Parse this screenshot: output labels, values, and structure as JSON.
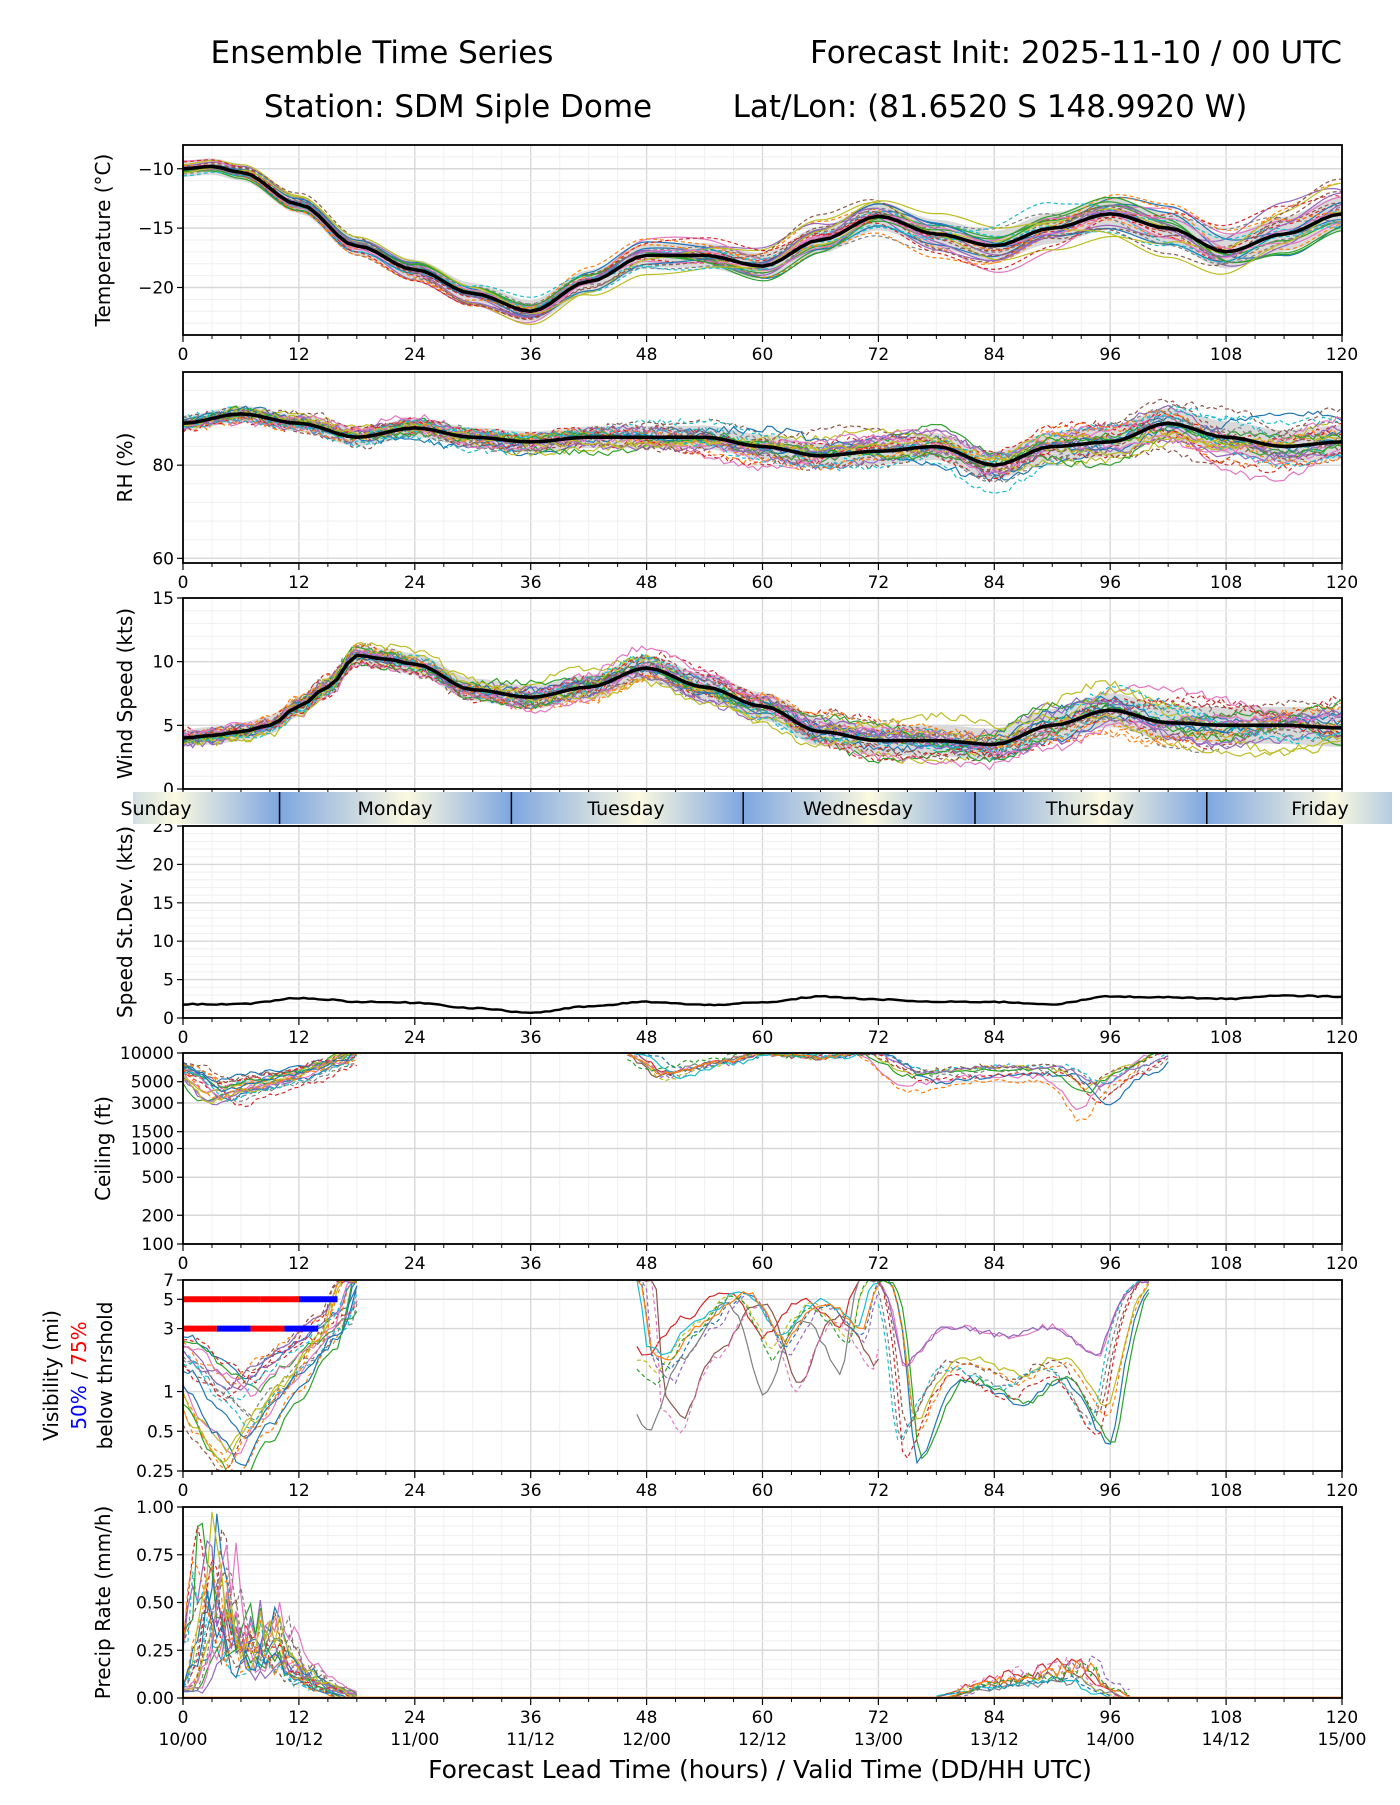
{
  "header": {
    "title_left": "Ensemble Time Series",
    "title_right": "Forecast Init: 2025-11-10 / 00 UTC",
    "station": "Station: SDM  Siple Dome",
    "latlon": "Lat/Lon: (81.6520 S 148.9920 W)"
  },
  "x_axis": {
    "label": "Forecast Lead Time (hours) / Valid Time (DD/HH UTC)",
    "lead_hours": [
      0,
      12,
      24,
      36,
      48,
      60,
      72,
      84,
      96,
      108,
      120
    ],
    "lead_tick_labels": [
      "0",
      "12",
      "24",
      "36",
      "48",
      "60",
      "72",
      "84",
      "96",
      "108",
      "120"
    ],
    "valid_time_labels": [
      "10/00",
      "10/12",
      "11/00",
      "11/12",
      "12/00",
      "12/12",
      "13/00",
      "13/12",
      "14/00",
      "14/12",
      "15/00"
    ]
  },
  "day_strip": {
    "days": [
      "Sunday",
      "Monday",
      "Tuesday",
      "Wednesday",
      "Thursday",
      "Friday"
    ],
    "day_boundaries_hours": [
      10,
      34,
      58,
      82,
      106
    ]
  },
  "colors": {
    "ensemble_palette": [
      "#1f77b4",
      "#ff7f0e",
      "#2ca02c",
      "#d62728",
      "#9467bd",
      "#8c564b",
      "#e377c2",
      "#7f7f7f",
      "#bcbd22",
      "#17becf"
    ],
    "mean_line": "#000000",
    "spread_band": "#d9d9d9",
    "grid": "#e6e6e6",
    "vis_50": "#0000ff",
    "vis_75": "#ff0000",
    "day_dark": "#7ea6e0",
    "day_light": "#fbf9e0"
  },
  "chart_data": [
    {
      "type": "line",
      "name": "temperature",
      "ylabel": "Temperature (°C)",
      "ylim": [
        -24,
        -8
      ],
      "yticks": [
        -10,
        -15,
        -20
      ],
      "ytick_labels": [
        "−10",
        "−15",
        "−20"
      ],
      "series": [
        {
          "name": "ensemble mean",
          "x": [
            0,
            3,
            6,
            12,
            18,
            24,
            30,
            36,
            42,
            48,
            54,
            60,
            66,
            72,
            78,
            84,
            90,
            96,
            102,
            108,
            114,
            120
          ],
          "values": [
            -10,
            -9.8,
            -10.3,
            -13,
            -16.5,
            -18.5,
            -20.5,
            -22,
            -19.5,
            -17.3,
            -17.3,
            -18.2,
            -16,
            -14,
            -15.5,
            -16.5,
            -15,
            -13.8,
            -15,
            -17,
            -15.5,
            -13.8
          ]
        }
      ],
      "ensemble_spread_approx": 2.5
    },
    {
      "type": "line",
      "name": "relative_humidity",
      "ylabel": "RH (%)",
      "ylim": [
        59,
        100
      ],
      "yticks": [
        60,
        80
      ],
      "ytick_labels": [
        "60",
        "80"
      ],
      "series": [
        {
          "name": "ensemble mean",
          "x": [
            0,
            6,
            12,
            18,
            24,
            30,
            36,
            42,
            48,
            54,
            60,
            66,
            72,
            78,
            84,
            90,
            96,
            102,
            108,
            114,
            120
          ],
          "values": [
            89,
            91,
            89,
            86,
            88,
            86,
            85,
            86,
            86,
            86,
            84,
            82,
            83,
            84,
            80,
            84,
            85,
            89,
            86,
            84,
            85
          ]
        }
      ],
      "ensemble_spread_approx": 6
    },
    {
      "type": "line",
      "name": "wind_speed",
      "ylabel": "Wind Speed (kts)",
      "ylim": [
        0,
        15
      ],
      "yticks": [
        0,
        5,
        10,
        15
      ],
      "ytick_labels": [
        "0",
        "5",
        "10",
        "15"
      ],
      "series": [
        {
          "name": "ensemble mean",
          "x": [
            0,
            3,
            6,
            9,
            12,
            15,
            18,
            21,
            24,
            30,
            36,
            42,
            48,
            54,
            60,
            66,
            72,
            78,
            84,
            90,
            96,
            102,
            108,
            114,
            120
          ],
          "values": [
            4,
            4.2,
            4.5,
            5,
            6.5,
            8,
            10.5,
            10.2,
            9.8,
            7.8,
            7.2,
            8,
            9.5,
            8,
            6.5,
            4.5,
            3.8,
            3.8,
            3.5,
            5,
            6.2,
            5.2,
            5,
            5,
            4.8
          ]
        }
      ],
      "ensemble_spread_approx": 2.5
    },
    {
      "type": "line",
      "name": "speed_stdev",
      "ylabel": "Speed St.Dev. (kts)",
      "ylim": [
        0,
        25
      ],
      "yticks": [
        0,
        5,
        10,
        15,
        20,
        25
      ],
      "ytick_labels": [
        "0",
        "5",
        "10",
        "15",
        "20",
        "25"
      ],
      "series": [
        {
          "name": "ensemble st.dev.",
          "x": [
            0,
            6,
            12,
            15,
            18,
            24,
            30,
            36,
            42,
            48,
            54,
            60,
            66,
            72,
            78,
            84,
            90,
            96,
            102,
            108,
            114,
            120
          ],
          "values": [
            1.8,
            1.8,
            2.6,
            2.4,
            2.1,
            2,
            1.3,
            0.7,
            1.5,
            2.1,
            1.7,
            2,
            2.8,
            2.4,
            2.1,
            2.1,
            1.8,
            2.8,
            2.7,
            2.5,
            2.9,
            2.8
          ]
        }
      ]
    },
    {
      "type": "line",
      "name": "ceiling",
      "ylabel": "Ceiling (ft)",
      "yscale": "log",
      "ylim": [
        100,
        10000
      ],
      "yticks": [
        100,
        200,
        500,
        1000,
        1500,
        3000,
        5000,
        10000
      ],
      "ytick_labels": [
        "100",
        "200",
        "500",
        "1000",
        "1500",
        "3000",
        "5000",
        "10000"
      ],
      "series": [
        {
          "name": "members with ceiling (early)",
          "x": [
            0,
            4,
            8,
            12,
            16,
            18
          ],
          "values": [
            7000,
            4000,
            5000,
            6000,
            8000,
            10000
          ]
        },
        {
          "name": "members with ceiling (mid)",
          "x": [
            46,
            50,
            56,
            60,
            66,
            70
          ],
          "values": [
            10000,
            6000,
            8000,
            10000,
            9000,
            10000
          ]
        },
        {
          "name": "members with ceiling (late)",
          "x": [
            70,
            76,
            84,
            90,
            94,
            98,
            102
          ],
          "values": [
            10000,
            5000,
            6000,
            6000,
            3000,
            6000,
            10000
          ]
        }
      ]
    },
    {
      "type": "line",
      "name": "visibility",
      "ylabel": "Visibility (mi)",
      "ylabel_50": "50%",
      "ylabel_sep": " / ",
      "ylabel_75": "75%",
      "ylabel_3": "below thrshold",
      "yscale": "log",
      "ylim": [
        0.25,
        7
      ],
      "yticks": [
        0.25,
        0.5,
        1,
        3,
        5,
        7
      ],
      "ytick_labels": [
        "0.25",
        "0.5",
        "1",
        "3",
        "5",
        "7"
      ],
      "threshold_bars": [
        {
          "name": "5 mi 75%",
          "threshold": 5,
          "x_start": 0,
          "x_end": 16,
          "segments": [
            "red",
            "red",
            "red",
            "blue"
          ]
        },
        {
          "name": "3 mi 75%",
          "threshold": 3,
          "x_start": 0,
          "x_end": 14,
          "segments": [
            "red",
            "blue",
            "red",
            "blue"
          ]
        }
      ],
      "series": [
        {
          "name": "members (early)",
          "x": [
            0,
            3,
            6,
            9,
            12,
            16,
            18
          ],
          "values": [
            1.5,
            0.8,
            0.5,
            0.9,
            1.5,
            3,
            7
          ]
        },
        {
          "name": "members (mid)",
          "x": [
            47,
            48,
            50,
            54,
            58,
            62,
            66,
            70,
            72
          ],
          "values": [
            7,
            1.2,
            0.9,
            2.5,
            5,
            1.5,
            4,
            2,
            7
          ]
        },
        {
          "name": "members (late)",
          "x": [
            72,
            75,
            80,
            86,
            90,
            95,
            100
          ],
          "values": [
            7,
            0.7,
            2,
            1.5,
            2,
            0.9,
            7
          ]
        }
      ]
    },
    {
      "type": "line",
      "name": "precip_rate",
      "ylabel": "Precip Rate (mm/h)",
      "ylim": [
        0,
        1
      ],
      "yticks": [
        0,
        0.25,
        0.5,
        0.75,
        1
      ],
      "ytick_labels": [
        "0.00",
        "0.25",
        "0.50",
        "0.75",
        "1.00"
      ],
      "series": [
        {
          "name": "members (early)",
          "x": [
            0,
            2,
            3,
            6,
            9,
            12,
            15,
            18
          ],
          "values": [
            0.05,
            0.3,
            0.58,
            0.2,
            0.3,
            0.12,
            0.05,
            0
          ]
        },
        {
          "name": "members (late)",
          "x": [
            78,
            84,
            88,
            93,
            96,
            98
          ],
          "values": [
            0,
            0.07,
            0.1,
            0.13,
            0.04,
            0
          ]
        }
      ]
    }
  ]
}
